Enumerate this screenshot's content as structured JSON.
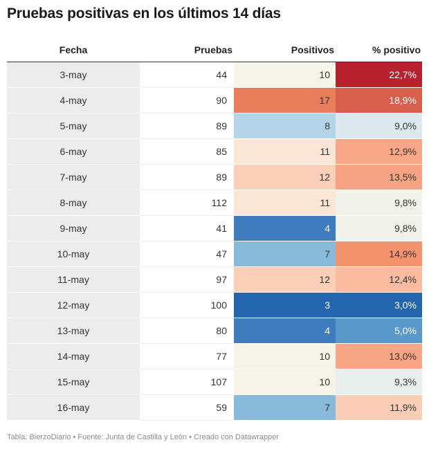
{
  "title": "Pruebas positivas en los últimos 14 días",
  "columns": [
    "Fecha",
    "Pruebas",
    "Positivos",
    "% positivo"
  ],
  "footer": "Tabla: BierzoDiario • Fuente: Junta de Castilla y León • Creado con Datawrapper",
  "chart_data": {
    "type": "table",
    "columns": [
      "Fecha",
      "Pruebas",
      "Positivos",
      "% positivo"
    ],
    "rows": [
      {
        "fecha": "3-may",
        "pruebas": "44",
        "positivos": "10",
        "positivo_pct": "22,7%"
      },
      {
        "fecha": "4-may",
        "pruebas": "90",
        "positivos": "17",
        "positivo_pct": "18,9%"
      },
      {
        "fecha": "5-may",
        "pruebas": "89",
        "positivos": "8",
        "positivo_pct": "9,0%"
      },
      {
        "fecha": "6-may",
        "pruebas": "85",
        "positivos": "11",
        "positivo_pct": "12,9%"
      },
      {
        "fecha": "7-may",
        "pruebas": "89",
        "positivos": "12",
        "positivo_pct": "13,5%"
      },
      {
        "fecha": "8-may",
        "pruebas": "112",
        "positivos": "11",
        "positivo_pct": "9,8%"
      },
      {
        "fecha": "9-may",
        "pruebas": "41",
        "positivos": "4",
        "positivo_pct": "9,8%"
      },
      {
        "fecha": "10-may",
        "pruebas": "47",
        "positivos": "7",
        "positivo_pct": "14,9%"
      },
      {
        "fecha": "11-may",
        "pruebas": "97",
        "positivos": "12",
        "positivo_pct": "12,4%"
      },
      {
        "fecha": "12-may",
        "pruebas": "100",
        "positivos": "3",
        "positivo_pct": "3,0%"
      },
      {
        "fecha": "13-may",
        "pruebas": "80",
        "positivos": "4",
        "positivo_pct": "5,0%"
      },
      {
        "fecha": "14-may",
        "pruebas": "77",
        "positivos": "10",
        "positivo_pct": "13,0%"
      },
      {
        "fecha": "15-may",
        "pruebas": "107",
        "positivos": "10",
        "positivo_pct": "9,3%"
      },
      {
        "fecha": "16-may",
        "pruebas": "59",
        "positivos": "7",
        "positivo_pct": "11,9%"
      }
    ],
    "cell_colors": {
      "positivos": [
        "#f7f4e9",
        "#e87e5c",
        "#b4d4e8",
        "#fbe5d6",
        "#fccfb8",
        "#fbe5d6",
        "#3f7cbd",
        "#88bada",
        "#fccfb8",
        "#2466ad",
        "#3f7cbd",
        "#f7f4e9",
        "#f7f4e9",
        "#88bada"
      ],
      "positivo_pct": [
        "#b8222f",
        "#d7604d",
        "#dde9ee",
        "#f8a888",
        "#f6a384",
        "#f1f3ea",
        "#f1f3ea",
        "#f4936e",
        "#fabb9e",
        "#2466ad",
        "#5a98ca",
        "#f7a585",
        "#e7eeec",
        "#fccdb6"
      ],
      "dark_text": "#333333",
      "light_text": "#ffffff"
    }
  }
}
